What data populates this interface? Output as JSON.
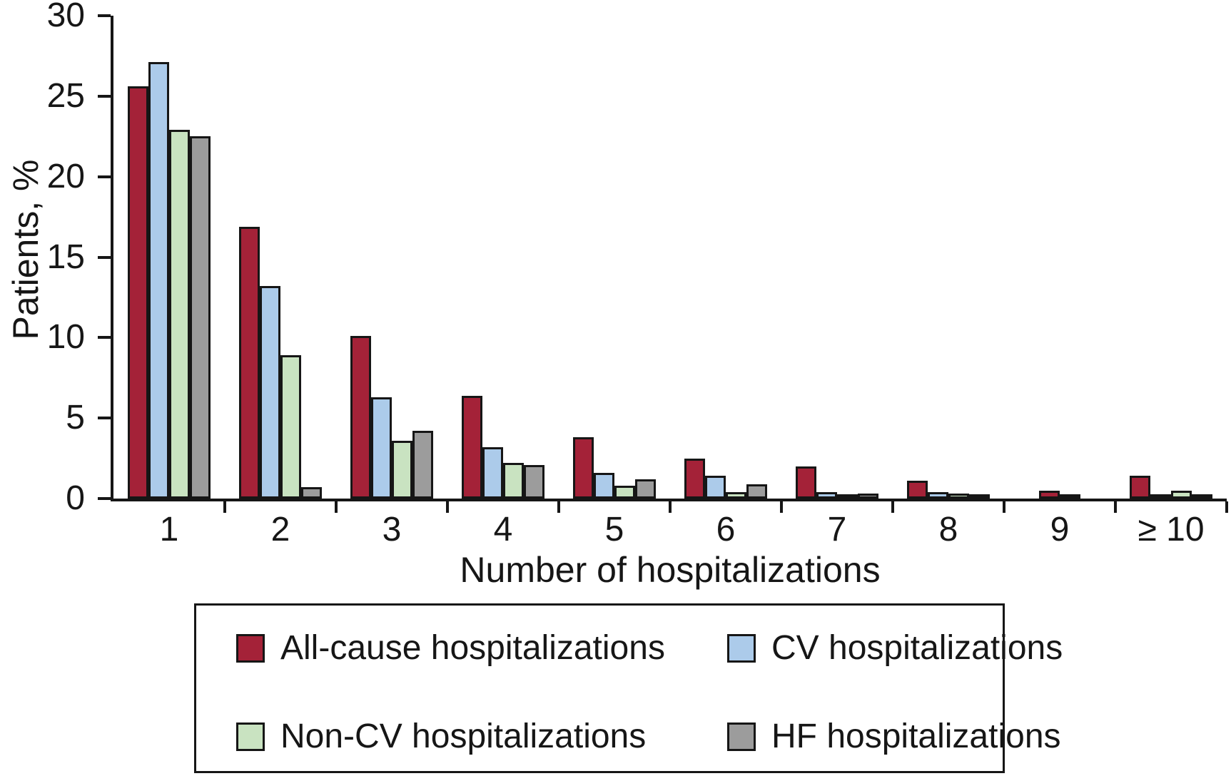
{
  "chart_data": {
    "type": "bar",
    "title": "",
    "xlabel": "Number of hospitalizations",
    "ylabel": "Patients, %",
    "ylim": [
      0,
      30
    ],
    "yticks": [
      0,
      5,
      10,
      15,
      20,
      25,
      30
    ],
    "grid": false,
    "legend_position": "boxed-below",
    "axis_color": "#161616",
    "categories": [
      "1",
      "2",
      "3",
      "4",
      "5",
      "6",
      "7",
      "8",
      "9",
      "≥ 10"
    ],
    "series": [
      {
        "name": "All-cause hospitalizations",
        "color": "#A42238",
        "values": [
          25.6,
          16.9,
          10.1,
          6.4,
          3.8,
          2.5,
          2.0,
          1.1,
          0.5,
          1.4
        ]
      },
      {
        "name": "CV hospitalizations",
        "color": "#ACCBEA",
        "values": [
          27.1,
          13.2,
          6.3,
          3.2,
          1.6,
          1.4,
          0.4,
          0.4,
          0.2,
          0.15
        ]
      },
      {
        "name": "Non-CV hospitalizations",
        "color": "#C9E3C1",
        "values": [
          22.9,
          8.9,
          3.6,
          2.2,
          0.8,
          0.4,
          0.2,
          0.3,
          0,
          0.5
        ]
      },
      {
        "name": "HF hospitalizations",
        "color": "#9C9C9C",
        "values": [
          22.5,
          0.7,
          4.2,
          2.1,
          1.2,
          0.9,
          0.3,
          0.1,
          0,
          0.05
        ]
      }
    ]
  }
}
